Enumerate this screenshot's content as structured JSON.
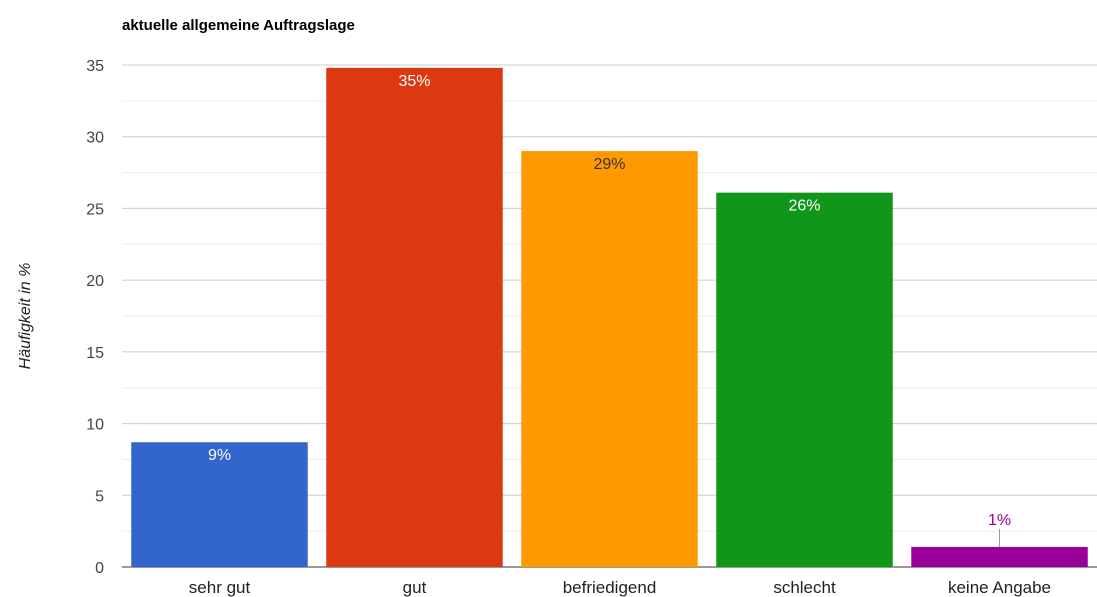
{
  "chart_data": {
    "type": "bar",
    "title": "aktuelle allgemeine Auftragslage",
    "xlabel": "",
    "ylabel": "Häufigkeit in %",
    "categories": [
      "sehr gut",
      "gut",
      "befriedigend",
      "schlecht",
      "keine Angabe"
    ],
    "values": [
      8.7,
      34.8,
      29.0,
      26.1,
      1.4
    ],
    "data_labels": [
      "9%",
      "35%",
      "29%",
      "26%",
      "1%"
    ],
    "colors": [
      "#3366cc",
      "#dc3912",
      "#ff9900",
      "#109618",
      "#990099"
    ],
    "label_colors": [
      "#ffffff",
      "#ffffff",
      "#333333",
      "#ffffff",
      "#990099"
    ],
    "ylim": [
      0,
      35
    ],
    "yticks": [
      0,
      5,
      10,
      15,
      20,
      25,
      30,
      35
    ],
    "grid": true,
    "legend": "none"
  }
}
